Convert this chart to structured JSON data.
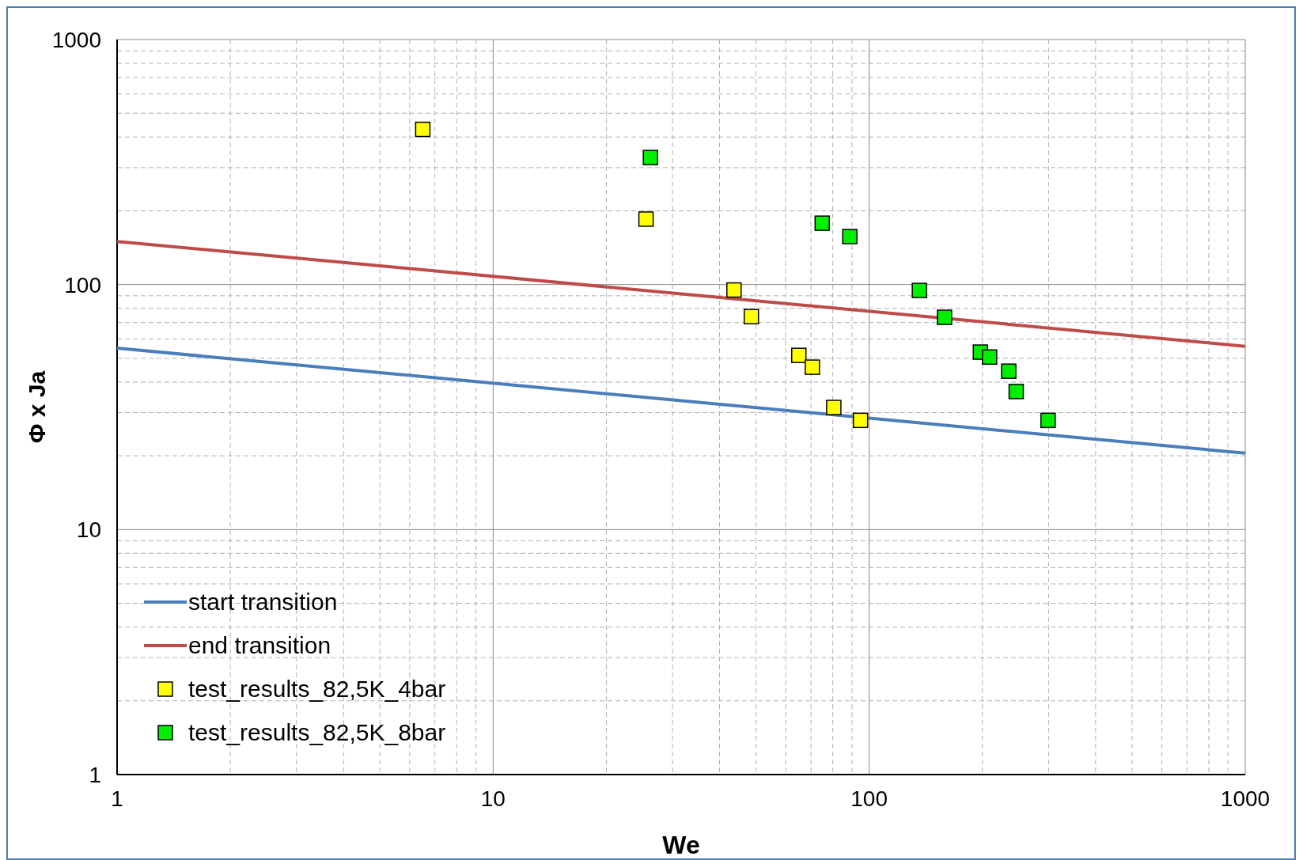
{
  "chart_data": {
    "type": "scatter",
    "xlabel": "We",
    "ylabel": "Φ x Ja",
    "log": "xy",
    "grid": true,
    "legend": "bottom left",
    "marker": "square",
    "xlim": [
      1,
      1000
    ],
    "xticks": [
      1,
      10,
      100,
      1000
    ],
    "ylim": [
      1,
      1000
    ],
    "yticks": [
      1,
      10,
      100,
      1000
    ],
    "series": [
      {
        "name": "start transition",
        "type": "line",
        "marker": "none",
        "color": "#4a7ebb",
        "x": [
          1,
          1000
        ],
        "values": [
          55,
          20.5
        ]
      },
      {
        "name": "end transition",
        "type": "line",
        "marker": "none",
        "color": "#be4b48",
        "x": [
          1,
          1000
        ],
        "values": [
          150,
          56
        ]
      },
      {
        "name": "test_results_82,5K_4bar",
        "color": "#ffff00",
        "x": [
          6.5,
          25.5,
          43.7,
          48.6,
          65,
          70.6,
          80.5,
          94.8
        ],
        "values": [
          430,
          185,
          95,
          74,
          51.4,
          46,
          31.5,
          27.9
        ]
      },
      {
        "name": "test_results_82,5K_8bar",
        "color": "#00ee00",
        "x": [
          26.2,
          75,
          88.8,
          136,
          158.6,
          197.6,
          209,
          235,
          246,
          299
        ],
        "values": [
          330,
          178,
          157,
          94.6,
          73.5,
          53,
          50.6,
          44.3,
          36.6,
          27.9
        ]
      }
    ]
  }
}
